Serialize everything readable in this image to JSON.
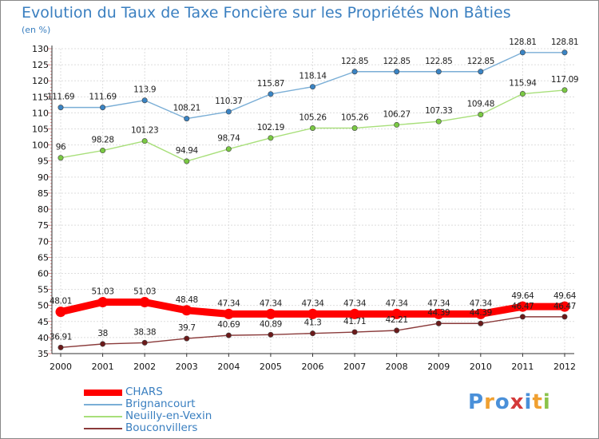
{
  "title": "Evolution du Taux de Taxe Foncière sur les Propriétés Non Bâties",
  "subtitle": "(en %)",
  "logo": {
    "text": "Proxiti",
    "letters": [
      {
        "ch": "P",
        "color": "#4a90d9"
      },
      {
        "ch": "r",
        "color": "#f0a030"
      },
      {
        "ch": "o",
        "color": "#4a90d9"
      },
      {
        "ch": "x",
        "color": "#d43a3a"
      },
      {
        "ch": "i",
        "color": "#4a90d9"
      },
      {
        "ch": "t",
        "color": "#f0a030"
      },
      {
        "ch": "i",
        "color": "#8bc34a"
      }
    ]
  },
  "chart_data": {
    "type": "line",
    "title": "Evolution du Taux de Taxe Foncière sur les Propriétés Non Bâties",
    "ylabel": "(en %)",
    "xlabel": "",
    "ylim": [
      35,
      130
    ],
    "yticks": [
      35,
      40,
      45,
      50,
      55,
      60,
      65,
      70,
      75,
      80,
      85,
      90,
      95,
      100,
      105,
      110,
      115,
      120,
      125,
      130
    ],
    "categories": [
      "2000",
      "2001",
      "2002",
      "2003",
      "2004",
      "2005",
      "2006",
      "2007",
      "2008",
      "2009",
      "2010",
      "2011",
      "2012"
    ],
    "grid": true,
    "legend_position": "bottom-left",
    "series": [
      {
        "name": "CHARS",
        "color": "#ff0000",
        "marker_color": "#ff0000",
        "style": "thick",
        "values": [
          48.01,
          51.03,
          51.03,
          48.48,
          47.34,
          47.34,
          47.34,
          47.34,
          47.34,
          47.34,
          47.34,
          49.64,
          49.64
        ],
        "labels": [
          "48.01",
          "51.03",
          "51.03",
          "48.48",
          "47.34",
          "47.34",
          "47.34",
          "47.34",
          "47.34",
          "47.34",
          "47.34",
          "49.64",
          "49.64"
        ]
      },
      {
        "name": "Brignancourt",
        "color": "#7aaed6",
        "marker_color": "#3a84c4",
        "style": "thin",
        "values": [
          111.69,
          111.69,
          113.9,
          108.21,
          110.37,
          115.87,
          118.14,
          122.85,
          122.85,
          122.85,
          122.85,
          128.81,
          128.81
        ],
        "labels": [
          "111.69",
          "111.69",
          "113.9",
          "108.21",
          "110.37",
          "115.87",
          "118.14",
          "122.85",
          "122.85",
          "122.85",
          "122.85",
          "128.81",
          "128.81"
        ]
      },
      {
        "name": "Neuilly-en-Vexin",
        "color": "#a8df7a",
        "marker_color": "#7ac943",
        "style": "thin",
        "values": [
          96,
          98.28,
          101.23,
          94.94,
          98.74,
          102.19,
          105.26,
          105.26,
          106.27,
          107.33,
          109.48,
          115.94,
          117.09
        ],
        "labels": [
          "96",
          "98.28",
          "101.23",
          "94.94",
          "98.74",
          "102.19",
          "105.26",
          "105.26",
          "106.27",
          "107.33",
          "109.48",
          "115.94",
          "117.09"
        ]
      },
      {
        "name": "Bouconvillers",
        "color": "#8a3a3a",
        "marker_color": "#6b1a1a",
        "style": "thin",
        "values": [
          36.91,
          38,
          38.38,
          39.7,
          40.69,
          40.89,
          41.3,
          41.71,
          42.21,
          44.39,
          44.39,
          46.47,
          46.47
        ],
        "labels": [
          "36.91",
          "38",
          "38.38",
          "39.7",
          "40.69",
          "40.89",
          "41.3",
          "41.71",
          "42.21",
          "44.39",
          "44.39",
          "46.47",
          "46.47"
        ]
      }
    ]
  }
}
